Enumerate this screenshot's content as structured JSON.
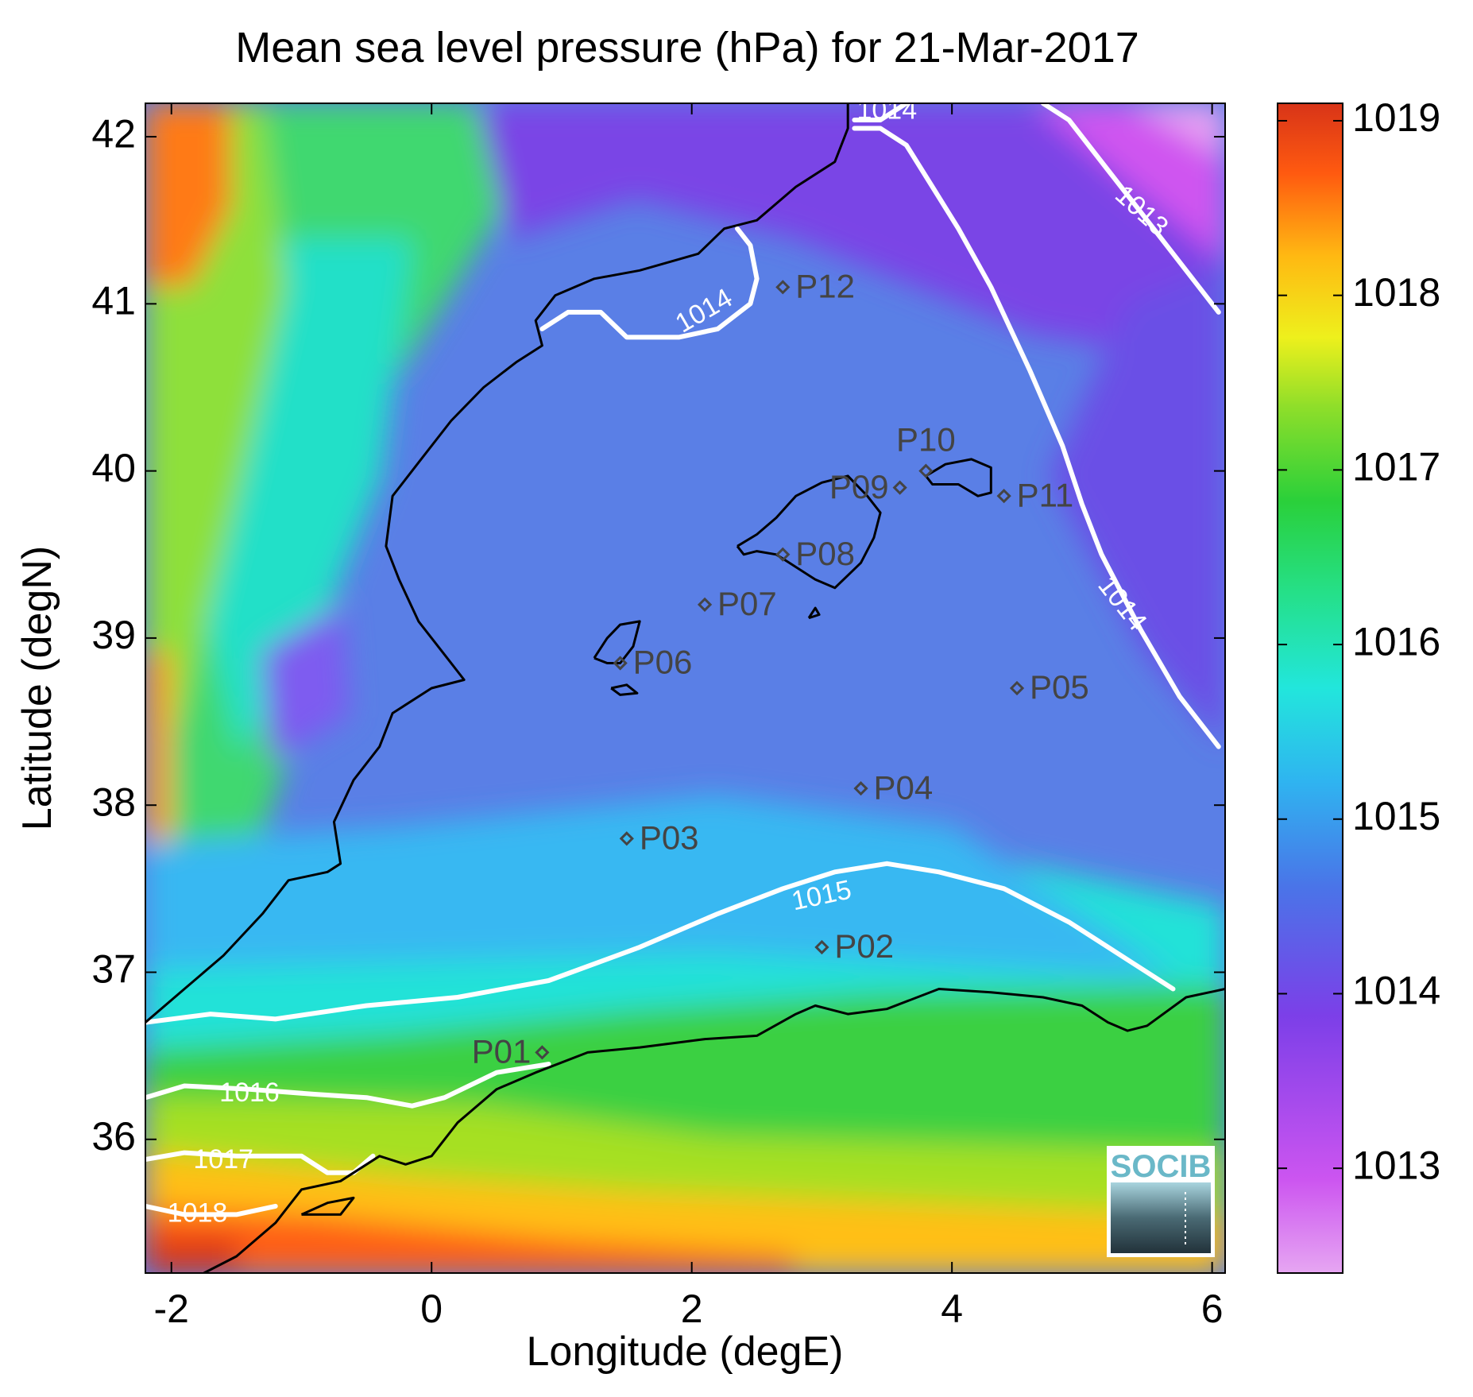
{
  "chart_data": {
    "type": "heatmap",
    "title": "Mean sea level pressure (hPa) for 21-Mar-2017",
    "xlabel": "Longitude (degE)",
    "ylabel": "Latitude (degN)",
    "xlim": [
      -2.2,
      6.1
    ],
    "ylim": [
      35.2,
      42.2
    ],
    "xticks": [
      -2,
      0,
      2,
      4,
      6
    ],
    "yticks": [
      36,
      37,
      38,
      39,
      40,
      41,
      42
    ],
    "colorbar": {
      "range": [
        1012.4,
        1019.1
      ],
      "ticks": [
        1013,
        1014,
        1015,
        1016,
        1017,
        1018,
        1019
      ]
    },
    "contours": [
      {
        "level": "1013",
        "label_lon": 5.45,
        "label_lat": 41.55,
        "label_rot": 42,
        "points": [
          [
            4.7,
            42.2
          ],
          [
            4.9,
            42.1
          ],
          [
            5.2,
            41.8
          ],
          [
            5.5,
            41.5
          ],
          [
            5.8,
            41.2
          ],
          [
            6.05,
            40.95
          ]
        ]
      },
      {
        "level": "1014",
        "label_lon": 2.1,
        "label_lat": 40.95,
        "label_rot": -30,
        "points": [
          [
            0.85,
            40.85
          ],
          [
            1.05,
            40.95
          ],
          [
            1.3,
            40.95
          ],
          [
            1.5,
            40.8
          ],
          [
            1.9,
            40.8
          ],
          [
            2.2,
            40.85
          ],
          [
            2.45,
            41.0
          ],
          [
            2.5,
            41.15
          ],
          [
            2.45,
            41.35
          ],
          [
            2.35,
            41.45
          ]
        ]
      },
      {
        "level": "1014",
        "label_lon": 5.3,
        "label_lat": 39.2,
        "label_rot": 52,
        "points": [
          [
            3.25,
            42.05
          ],
          [
            3.45,
            42.05
          ],
          [
            3.65,
            41.95
          ],
          [
            3.85,
            41.7
          ],
          [
            4.05,
            41.45
          ],
          [
            4.3,
            41.1
          ],
          [
            4.6,
            40.6
          ],
          [
            4.85,
            40.15
          ],
          [
            5.0,
            39.8
          ],
          [
            5.15,
            39.5
          ],
          [
            5.45,
            39.05
          ],
          [
            5.75,
            38.65
          ],
          [
            6.05,
            38.35
          ]
        ]
      },
      {
        "level": "1014",
        "label_lon": 3.5,
        "label_lat": 42.15,
        "label_rot": 0,
        "points": [
          [
            3.25,
            42.1
          ],
          [
            3.45,
            42.1
          ],
          [
            3.65,
            42.2
          ]
        ]
      },
      {
        "level": "1015",
        "label_lon": 3.0,
        "label_lat": 37.45,
        "label_rot": -12,
        "points": [
          [
            -2.2,
            36.7
          ],
          [
            -1.7,
            36.75
          ],
          [
            -1.2,
            36.72
          ],
          [
            -0.5,
            36.8
          ],
          [
            0.2,
            36.85
          ],
          [
            0.9,
            36.95
          ],
          [
            1.6,
            37.15
          ],
          [
            2.2,
            37.35
          ],
          [
            2.7,
            37.5
          ],
          [
            3.1,
            37.6
          ],
          [
            3.5,
            37.65
          ],
          [
            3.9,
            37.6
          ],
          [
            4.4,
            37.5
          ],
          [
            4.9,
            37.3
          ],
          [
            5.4,
            37.05
          ],
          [
            5.7,
            36.9
          ]
        ]
      },
      {
        "level": "1016",
        "label_lon": -1.4,
        "label_lat": 36.27,
        "label_rot": 0,
        "points": [
          [
            -2.2,
            36.25
          ],
          [
            -1.9,
            36.32
          ],
          [
            -1.4,
            36.3
          ],
          [
            -0.9,
            36.27
          ],
          [
            -0.5,
            36.25
          ],
          [
            -0.15,
            36.2
          ],
          [
            0.1,
            36.25
          ],
          [
            0.5,
            36.4
          ],
          [
            0.9,
            36.45
          ]
        ]
      },
      {
        "level": "1017",
        "label_lon": -1.6,
        "label_lat": 35.87,
        "label_rot": 0,
        "points": [
          [
            -2.2,
            35.88
          ],
          [
            -1.9,
            35.92
          ],
          [
            -1.5,
            35.9
          ],
          [
            -1.0,
            35.9
          ],
          [
            -0.8,
            35.8
          ],
          [
            -0.6,
            35.8
          ],
          [
            -0.45,
            35.9
          ]
        ]
      },
      {
        "level": "1018",
        "label_lon": -1.8,
        "label_lat": 35.55,
        "label_rot": 0,
        "points": [
          [
            -2.2,
            35.6
          ],
          [
            -1.9,
            35.55
          ],
          [
            -1.5,
            35.55
          ],
          [
            -1.2,
            35.6
          ]
        ]
      }
    ],
    "stations": [
      {
        "name": "P01",
        "lon": 0.85,
        "lat": 36.52,
        "label_side": "left"
      },
      {
        "name": "P02",
        "lon": 3.0,
        "lat": 37.15,
        "label_side": "right"
      },
      {
        "name": "P03",
        "lon": 1.5,
        "lat": 37.8,
        "label_side": "right"
      },
      {
        "name": "P04",
        "lon": 3.3,
        "lat": 38.1,
        "label_side": "right"
      },
      {
        "name": "P05",
        "lon": 4.5,
        "lat": 38.7,
        "label_side": "right"
      },
      {
        "name": "P06",
        "lon": 1.45,
        "lat": 38.85,
        "label_side": "right"
      },
      {
        "name": "P07",
        "lon": 2.1,
        "lat": 39.2,
        "label_side": "right"
      },
      {
        "name": "P08",
        "lon": 2.7,
        "lat": 39.5,
        "label_side": "right"
      },
      {
        "name": "P09",
        "lon": 3.6,
        "lat": 39.9,
        "label_side": "left"
      },
      {
        "name": "P10",
        "lon": 3.8,
        "lat": 40.0,
        "label_side": "above"
      },
      {
        "name": "P11",
        "lon": 4.4,
        "lat": 39.85,
        "label_side": "right"
      },
      {
        "name": "P12",
        "lon": 2.7,
        "lat": 41.1,
        "label_side": "right"
      }
    ],
    "coastlines": {
      "iberia": [
        [
          -2.2,
          36.7
        ],
        [
          -1.9,
          36.9
        ],
        [
          -1.6,
          37.1
        ],
        [
          -1.3,
          37.35
        ],
        [
          -1.1,
          37.55
        ],
        [
          -0.8,
          37.6
        ],
        [
          -0.7,
          37.65
        ],
        [
          -0.75,
          37.9
        ],
        [
          -0.6,
          38.15
        ],
        [
          -0.4,
          38.35
        ],
        [
          -0.3,
          38.55
        ],
        [
          0.0,
          38.7
        ],
        [
          0.25,
          38.75
        ],
        [
          0.1,
          38.9
        ],
        [
          -0.1,
          39.1
        ],
        [
          -0.25,
          39.35
        ],
        [
          -0.35,
          39.55
        ],
        [
          -0.3,
          39.85
        ],
        [
          -0.1,
          40.05
        ],
        [
          0.15,
          40.3
        ],
        [
          0.4,
          40.5
        ],
        [
          0.65,
          40.65
        ],
        [
          0.85,
          40.75
        ],
        [
          0.8,
          40.9
        ],
        [
          0.95,
          41.05
        ],
        [
          1.25,
          41.15
        ],
        [
          1.6,
          41.2
        ],
        [
          2.05,
          41.3
        ],
        [
          2.25,
          41.45
        ],
        [
          2.5,
          41.5
        ],
        [
          2.8,
          41.7
        ],
        [
          3.1,
          41.85
        ],
        [
          3.2,
          42.05
        ],
        [
          3.2,
          42.2
        ]
      ],
      "africa": [
        [
          -1.75,
          35.2
        ],
        [
          -1.5,
          35.3
        ],
        [
          -1.2,
          35.5
        ],
        [
          -1.0,
          35.7
        ],
        [
          -0.7,
          35.75
        ],
        [
          -0.4,
          35.9
        ],
        [
          -0.2,
          35.85
        ],
        [
          0.0,
          35.9
        ],
        [
          0.2,
          36.1
        ],
        [
          0.5,
          36.3
        ],
        [
          0.8,
          36.4
        ],
        [
          1.2,
          36.52
        ],
        [
          1.6,
          36.55
        ],
        [
          2.1,
          36.6
        ],
        [
          2.5,
          36.62
        ],
        [
          2.8,
          36.75
        ],
        [
          2.95,
          36.8
        ],
        [
          3.2,
          36.75
        ],
        [
          3.5,
          36.78
        ],
        [
          3.9,
          36.9
        ],
        [
          4.3,
          36.88
        ],
        [
          4.7,
          36.85
        ],
        [
          5.0,
          36.8
        ],
        [
          5.2,
          36.7
        ],
        [
          5.35,
          36.65
        ],
        [
          5.5,
          36.68
        ],
        [
          5.8,
          36.85
        ],
        [
          6.1,
          36.9
        ]
      ],
      "mallorca": [
        [
          2.35,
          39.55
        ],
        [
          2.5,
          39.62
        ],
        [
          2.65,
          39.72
        ],
        [
          2.8,
          39.85
        ],
        [
          3.0,
          39.93
        ],
        [
          3.2,
          39.97
        ],
        [
          3.35,
          39.85
        ],
        [
          3.45,
          39.75
        ],
        [
          3.4,
          39.6
        ],
        [
          3.3,
          39.45
        ],
        [
          3.1,
          39.3
        ],
        [
          2.95,
          39.35
        ],
        [
          2.75,
          39.45
        ],
        [
          2.65,
          39.5
        ],
        [
          2.5,
          39.52
        ],
        [
          2.4,
          39.5
        ],
        [
          2.35,
          39.55
        ]
      ],
      "menorca": [
        [
          3.8,
          39.97
        ],
        [
          3.95,
          40.04
        ],
        [
          4.15,
          40.07
        ],
        [
          4.3,
          40.02
        ],
        [
          4.3,
          39.87
        ],
        [
          4.2,
          39.85
        ],
        [
          4.05,
          39.92
        ],
        [
          3.85,
          39.92
        ],
        [
          3.8,
          39.97
        ]
      ],
      "ibiza": [
        [
          1.25,
          38.88
        ],
        [
          1.35,
          39.0
        ],
        [
          1.45,
          39.08
        ],
        [
          1.6,
          39.1
        ],
        [
          1.55,
          38.95
        ],
        [
          1.45,
          38.85
        ],
        [
          1.35,
          38.85
        ],
        [
          1.25,
          38.88
        ]
      ],
      "formentera": [
        [
          1.38,
          38.7
        ],
        [
          1.5,
          38.72
        ],
        [
          1.58,
          38.67
        ],
        [
          1.45,
          38.66
        ],
        [
          1.38,
          38.7
        ]
      ],
      "cabrera": [
        [
          2.9,
          39.12
        ],
        [
          2.98,
          39.14
        ],
        [
          2.95,
          39.18
        ],
        [
          2.9,
          39.12
        ]
      ],
      "alboran": [
        [
          -1.0,
          35.55
        ],
        [
          -0.8,
          35.62
        ],
        [
          -0.6,
          35.65
        ],
        [
          -0.7,
          35.55
        ],
        [
          -1.0,
          35.55
        ]
      ]
    }
  },
  "logo": {
    "text": "SOCIB"
  }
}
